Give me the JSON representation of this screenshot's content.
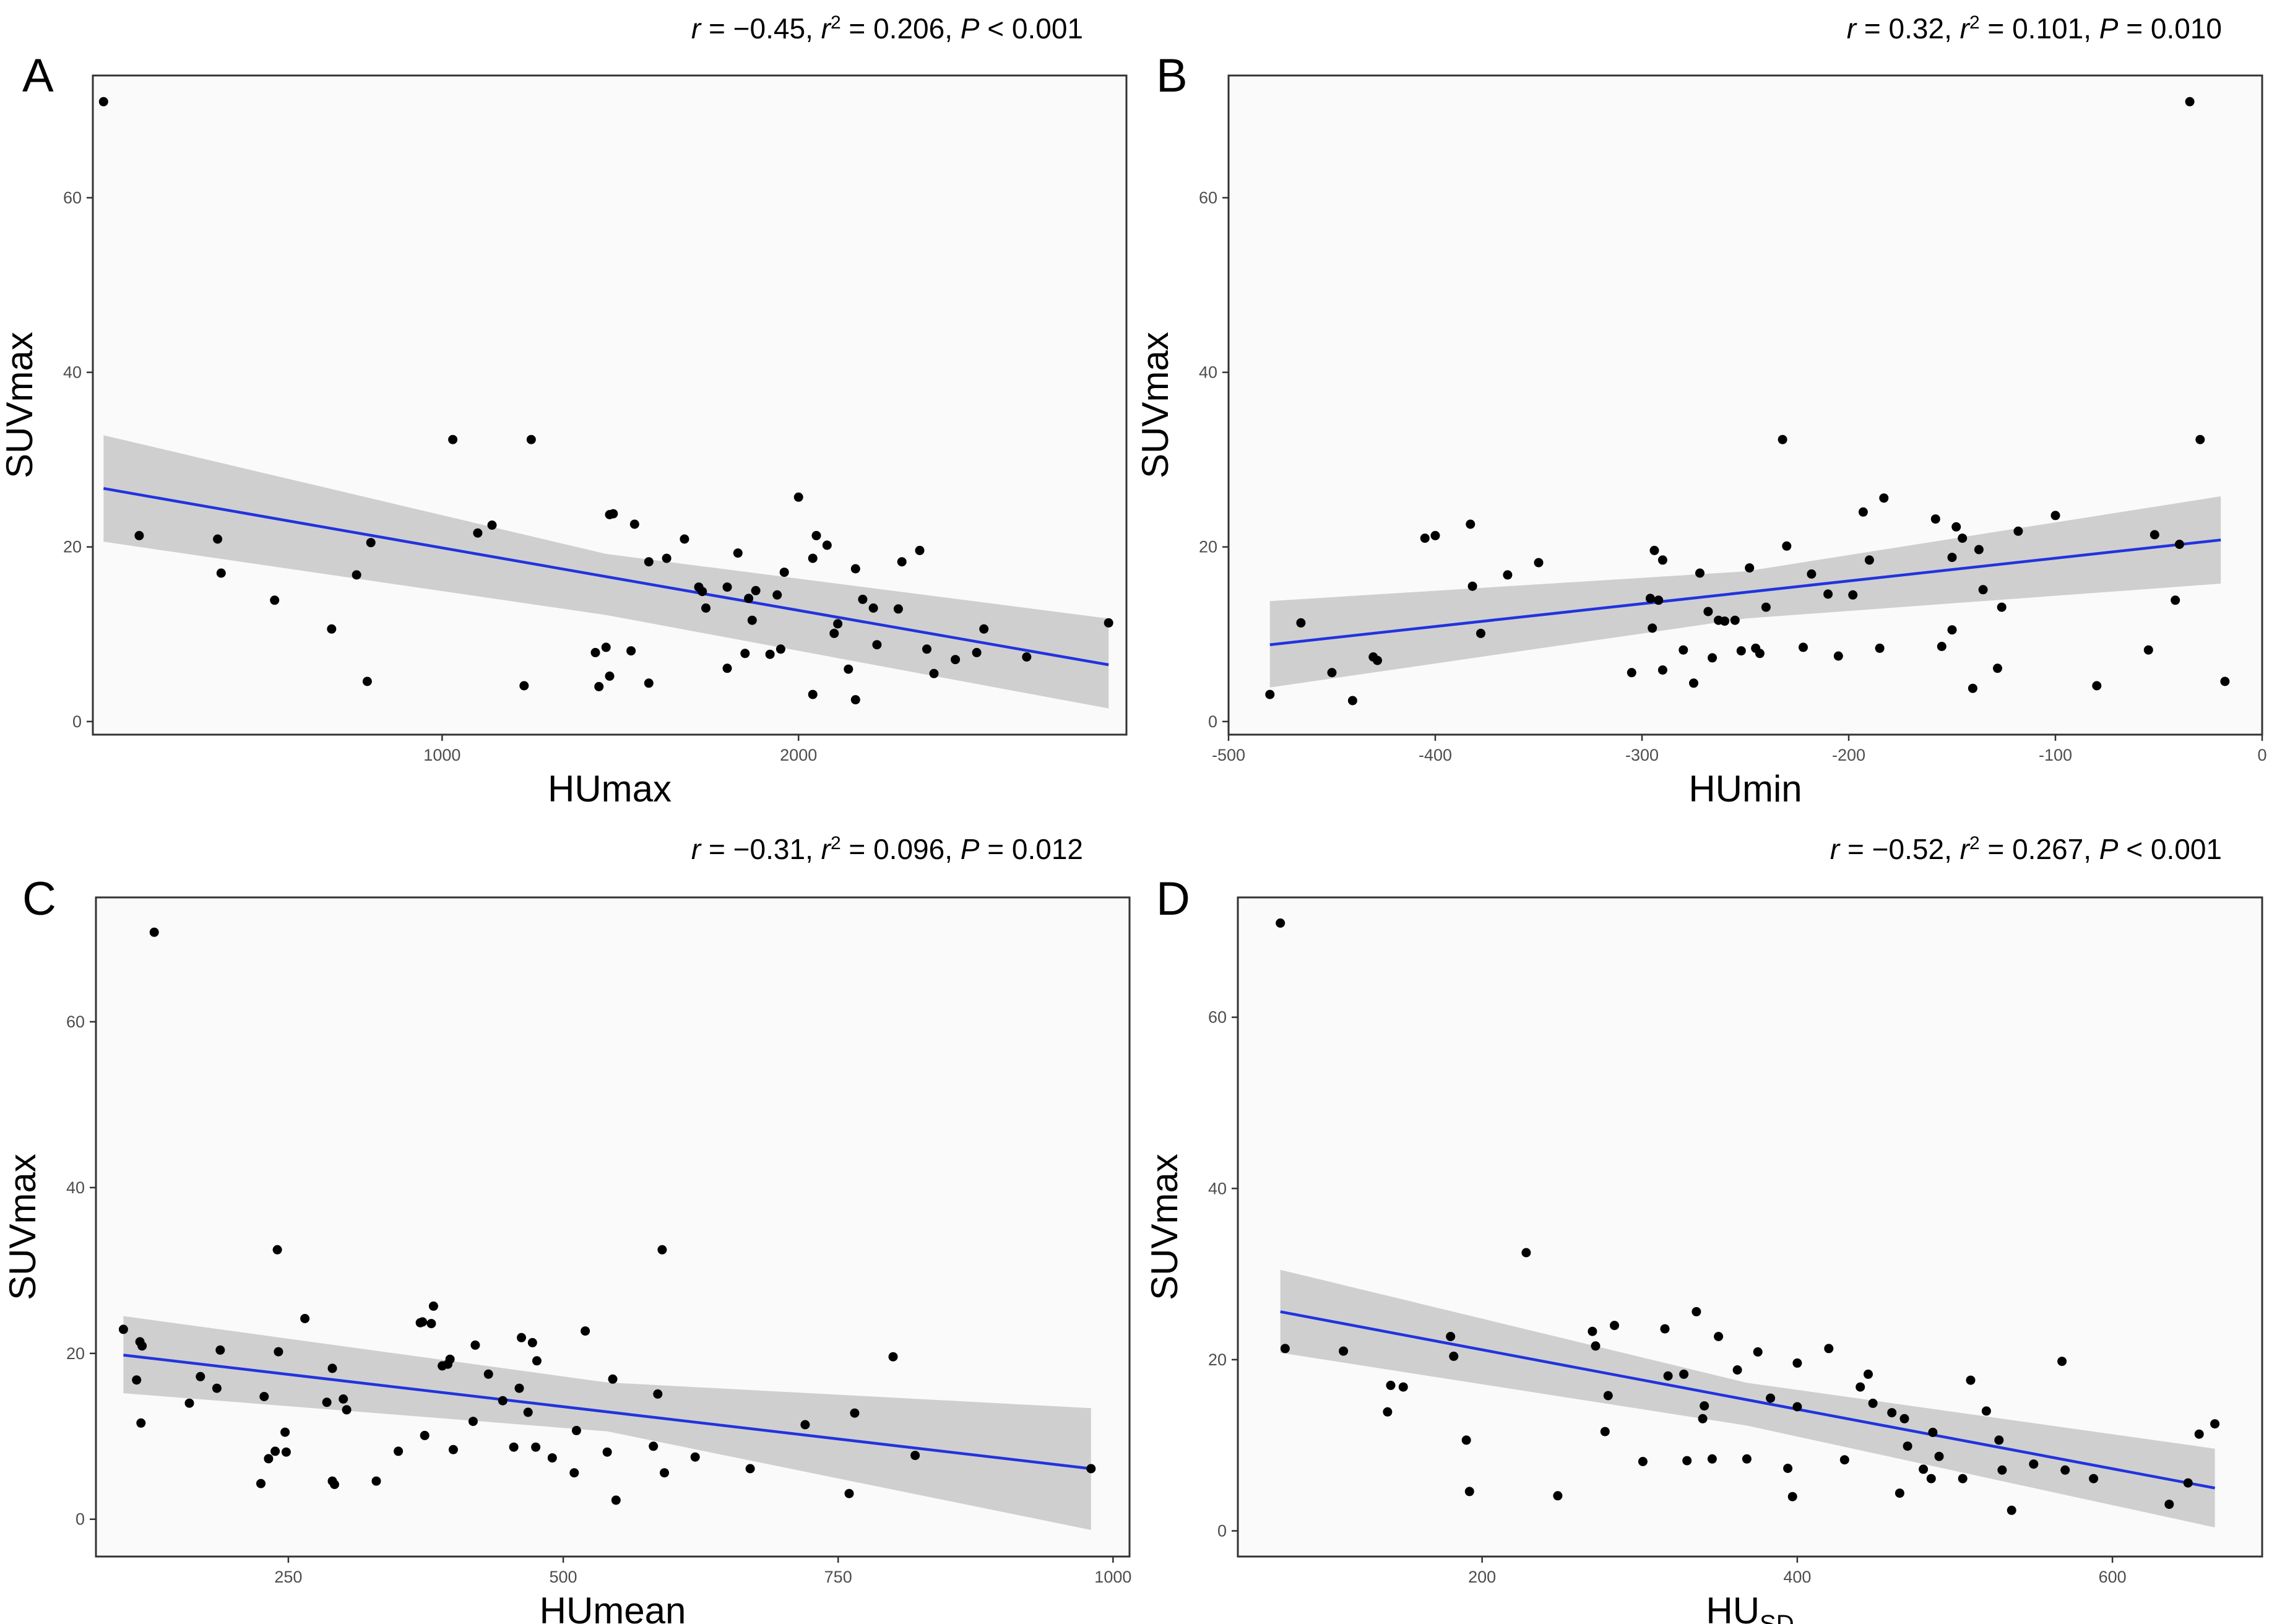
{
  "colors": {
    "fit_line": "#2233dd",
    "ci_band": "#bebebe",
    "point": "#000000",
    "panel_background": "#fafafa"
  },
  "chart_data": [
    {
      "type": "scatter",
      "panel": "A",
      "stats": {
        "r": "−0.45",
        "r2": "0.206",
        "p": "< 0.001"
      },
      "xlabel": "HUmax",
      "ylabel": "SUVmax",
      "xlim": [
        20,
        2920
      ],
      "ylim": [
        -1.5,
        74
      ],
      "xticks": [
        1000,
        2000
      ],
      "yticks": [
        0,
        20,
        40,
        60
      ],
      "fit": {
        "x": [
          50,
          2870
        ],
        "y": [
          26.7,
          6.5
        ]
      },
      "ci": {
        "upper": [
          32.8,
          19.2,
          11.8
        ],
        "lower": [
          20.6,
          12.2,
          1.5
        ],
        "x": [
          50,
          1460,
          2870
        ]
      },
      "points": [
        [
          50,
          71
        ],
        [
          150,
          21.3
        ],
        [
          370,
          20.9
        ],
        [
          380,
          17
        ],
        [
          530,
          13.9
        ],
        [
          690,
          10.6
        ],
        [
          760,
          16.8
        ],
        [
          790,
          4.6
        ],
        [
          800,
          20.5
        ],
        [
          1030,
          32.3
        ],
        [
          1100,
          21.6
        ],
        [
          1140,
          22.5
        ],
        [
          1230,
          4.1
        ],
        [
          1250,
          32.3
        ],
        [
          1430,
          7.9
        ],
        [
          1440,
          4
        ],
        [
          1460,
          8.5
        ],
        [
          1470,
          5.2
        ],
        [
          1470,
          23.7
        ],
        [
          1480,
          23.8
        ],
        [
          1530,
          8.1
        ],
        [
          1540,
          22.6
        ],
        [
          1580,
          18.3
        ],
        [
          1580,
          4.4
        ],
        [
          1630,
          18.7
        ],
        [
          1680,
          20.9
        ],
        [
          1720,
          15.4
        ],
        [
          1730,
          14.9
        ],
        [
          1740,
          13
        ],
        [
          1800,
          6.1
        ],
        [
          1800,
          15.4
        ],
        [
          1830,
          19.3
        ],
        [
          1850,
          7.8
        ],
        [
          1860,
          14.1
        ],
        [
          1870,
          11.6
        ],
        [
          1880,
          15
        ],
        [
          1920,
          7.7
        ],
        [
          1940,
          14.5
        ],
        [
          1950,
          8.3
        ],
        [
          1960,
          17.1
        ],
        [
          2000,
          25.7
        ],
        [
          2040,
          18.7
        ],
        [
          2040,
          3.1
        ],
        [
          2050,
          21.3
        ],
        [
          2080,
          20.2
        ],
        [
          2100,
          10.1
        ],
        [
          2110,
          11.2
        ],
        [
          2140,
          6
        ],
        [
          2160,
          2.5
        ],
        [
          2160,
          17.5
        ],
        [
          2180,
          14
        ],
        [
          2210,
          13
        ],
        [
          2220,
          8.8
        ],
        [
          2280,
          12.9
        ],
        [
          2290,
          18.3
        ],
        [
          2340,
          19.6
        ],
        [
          2360,
          8.3
        ],
        [
          2380,
          5.5
        ],
        [
          2440,
          7.1
        ],
        [
          2500,
          7.9
        ],
        [
          2520,
          10.6
        ],
        [
          2640,
          7.4
        ],
        [
          2870,
          11.3
        ]
      ]
    },
    {
      "type": "scatter",
      "panel": "B",
      "stats": {
        "r": "0.32",
        "r2": "0.101",
        "p": "= 0.010"
      },
      "xlabel": "HUmin",
      "ylabel": "SUVmax",
      "xlim": [
        -500,
        0
      ],
      "ylim": [
        -1.5,
        74
      ],
      "xticks": [
        -500,
        -400,
        -300,
        -200,
        -100,
        0
      ],
      "yticks": [
        0,
        20,
        40,
        60
      ],
      "fit": {
        "x": [
          -480,
          -20
        ],
        "y": [
          8.8,
          20.8
        ]
      },
      "ci": {
        "upper": [
          13.8,
          17.2,
          25.8
        ],
        "lower": [
          3.9,
          11.8,
          15.8
        ],
        "x": [
          -480,
          -250,
          -20
        ]
      },
      "points": [
        [
          -480,
          3.1
        ],
        [
          -465,
          11.3
        ],
        [
          -450,
          5.6
        ],
        [
          -440,
          2.4
        ],
        [
          -430,
          7.4
        ],
        [
          -428,
          7
        ],
        [
          -405,
          21
        ],
        [
          -400,
          21.3
        ],
        [
          -383,
          22.6
        ],
        [
          -382,
          15.5
        ],
        [
          -378,
          10.1
        ],
        [
          -365,
          16.8
        ],
        [
          -350,
          18.2
        ],
        [
          -305,
          5.6
        ],
        [
          -296,
          14.1
        ],
        [
          -295,
          10.7
        ],
        [
          -294,
          19.6
        ],
        [
          -292,
          13.9
        ],
        [
          -290,
          5.9
        ],
        [
          -290,
          18.5
        ],
        [
          -280,
          8.2
        ],
        [
          -275,
          4.4
        ],
        [
          -272,
          17
        ],
        [
          -268,
          12.6
        ],
        [
          -266,
          7.3
        ],
        [
          -263,
          11.6
        ],
        [
          -260,
          11.5
        ],
        [
          -255,
          11.6
        ],
        [
          -252,
          8.1
        ],
        [
          -248,
          17.6
        ],
        [
          -245,
          8.4
        ],
        [
          -243,
          7.8
        ],
        [
          -240,
          13.1
        ],
        [
          -232,
          32.3
        ],
        [
          -230,
          20.1
        ],
        [
          -222,
          8.5
        ],
        [
          -218,
          16.9
        ],
        [
          -210,
          14.6
        ],
        [
          -205,
          7.5
        ],
        [
          -198,
          14.5
        ],
        [
          -193,
          24
        ],
        [
          -190,
          18.5
        ],
        [
          -185,
          8.4
        ],
        [
          -183,
          25.6
        ],
        [
          -158,
          23.2
        ],
        [
          -155,
          8.6
        ],
        [
          -150,
          10.5
        ],
        [
          -150,
          18.8
        ],
        [
          -148,
          22.3
        ],
        [
          -145,
          21
        ],
        [
          -140,
          3.8
        ],
        [
          -137,
          19.7
        ],
        [
          -135,
          15.1
        ],
        [
          -128,
          6.1
        ],
        [
          -126,
          13.1
        ],
        [
          -118,
          21.8
        ],
        [
          -100,
          23.6
        ],
        [
          -80,
          4.1
        ],
        [
          -55,
          8.2
        ],
        [
          -52,
          21.4
        ],
        [
          -42,
          13.9
        ],
        [
          -40,
          20.3
        ],
        [
          -35,
          71
        ],
        [
          -30,
          32.3
        ],
        [
          -18,
          4.6
        ]
      ]
    },
    {
      "type": "scatter",
      "panel": "C",
      "stats": {
        "r": "−0.31",
        "r2": "0.096",
        "p": "= 0.012"
      },
      "xlabel": "HUmean",
      "ylabel": "SUVmax",
      "xlim": [
        75,
        1015
      ],
      "ylim": [
        -4.5,
        75
      ],
      "xticks": [
        250,
        500,
        750,
        1000
      ],
      "yticks": [
        0,
        20,
        40,
        60
      ],
      "fit": {
        "x": [
          100,
          980
        ],
        "y": [
          19.8,
          6.1
        ]
      },
      "ci": {
        "upper": [
          24.5,
          16.5,
          13.4
        ],
        "lower": [
          15.2,
          10.6,
          -1.3
        ],
        "x": [
          100,
          540,
          980
        ]
      },
      "points": [
        [
          100,
          22.9
        ],
        [
          112,
          16.8
        ],
        [
          115,
          21.4
        ],
        [
          116,
          11.6
        ],
        [
          117,
          20.9
        ],
        [
          128,
          70.8
        ],
        [
          160,
          14
        ],
        [
          170,
          17.2
        ],
        [
          185,
          15.8
        ],
        [
          188,
          20.4
        ],
        [
          225,
          4.3
        ],
        [
          228,
          14.8
        ],
        [
          232,
          7.3
        ],
        [
          238,
          8.2
        ],
        [
          240,
          32.5
        ],
        [
          241,
          20.2
        ],
        [
          247,
          10.5
        ],
        [
          248,
          8.1
        ],
        [
          265,
          24.2
        ],
        [
          285,
          14.1
        ],
        [
          290,
          18.2
        ],
        [
          290,
          4.6
        ],
        [
          292,
          4.2
        ],
        [
          300,
          14.5
        ],
        [
          303,
          13.2
        ],
        [
          330,
          4.6
        ],
        [
          350,
          8.2
        ],
        [
          370,
          23.7
        ],
        [
          372,
          23.8
        ],
        [
          374,
          10.1
        ],
        [
          380,
          23.6
        ],
        [
          382,
          25.7
        ],
        [
          390,
          18.5
        ],
        [
          395,
          18.7
        ],
        [
          397,
          19.3
        ],
        [
          400,
          8.4
        ],
        [
          418,
          11.8
        ],
        [
          420,
          21
        ],
        [
          432,
          17.5
        ],
        [
          445,
          14.3
        ],
        [
          455,
          8.7
        ],
        [
          460,
          15.8
        ],
        [
          462,
          21.9
        ],
        [
          468,
          12.9
        ],
        [
          472,
          21.3
        ],
        [
          475,
          8.7
        ],
        [
          476,
          19.1
        ],
        [
          490,
          7.4
        ],
        [
          510,
          5.6
        ],
        [
          512,
          10.7
        ],
        [
          520,
          22.7
        ],
        [
          540,
          8.1
        ],
        [
          545,
          16.9
        ],
        [
          548,
          2.3
        ],
        [
          582,
          8.8
        ],
        [
          586,
          15.1
        ],
        [
          590,
          32.5
        ],
        [
          592,
          5.6
        ],
        [
          620,
          7.5
        ],
        [
          670,
          6.1
        ],
        [
          720,
          11.4
        ],
        [
          760,
          3.1
        ],
        [
          765,
          12.8
        ],
        [
          800,
          19.6
        ],
        [
          820,
          7.7
        ],
        [
          980,
          6.1
        ]
      ]
    },
    {
      "type": "scatter",
      "panel": "D",
      "stats": {
        "r": "−0.52",
        "r2": "0.267",
        "p": "< 0.001"
      },
      "xlabel": "HU",
      "xlabel_subscript": "SD",
      "ylabel": "SUVmax",
      "xlim": [
        45,
        695
      ],
      "ylim": [
        -3,
        74
      ],
      "xticks": [
        200,
        400,
        600
      ],
      "yticks": [
        0,
        20,
        40,
        60
      ],
      "fit": {
        "x": [
          72,
          665
        ],
        "y": [
          25.6,
          5
        ]
      },
      "ci": {
        "upper": [
          30.5,
          17.3,
          9.6
        ],
        "lower": [
          20.8,
          12.3,
          0.4
        ],
        "x": [
          72,
          368,
          665
        ]
      },
      "points": [
        [
          72,
          71
        ],
        [
          75,
          21.3
        ],
        [
          112,
          21
        ],
        [
          140,
          13.9
        ],
        [
          142,
          17
        ],
        [
          150,
          16.8
        ],
        [
          180,
          22.7
        ],
        [
          182,
          20.4
        ],
        [
          190,
          10.6
        ],
        [
          192,
          4.6
        ],
        [
          228,
          32.5
        ],
        [
          248,
          4.1
        ],
        [
          270,
          23.3
        ],
        [
          272,
          21.6
        ],
        [
          278,
          11.6
        ],
        [
          280,
          15.8
        ],
        [
          284,
          24
        ],
        [
          302,
          8.1
        ],
        [
          316,
          23.6
        ],
        [
          318,
          18.1
        ],
        [
          328,
          18.3
        ],
        [
          330,
          8.2
        ],
        [
          336,
          25.6
        ],
        [
          340,
          13.1
        ],
        [
          341,
          14.6
        ],
        [
          346,
          8.4
        ],
        [
          350,
          22.7
        ],
        [
          362,
          18.8
        ],
        [
          368,
          8.4
        ],
        [
          375,
          20.9
        ],
        [
          383,
          15.5
        ],
        [
          394,
          7.3
        ],
        [
          397,
          4
        ],
        [
          400,
          14.5
        ],
        [
          400,
          19.6
        ],
        [
          420,
          21.3
        ],
        [
          430,
          8.3
        ],
        [
          440,
          16.8
        ],
        [
          445,
          18.3
        ],
        [
          448,
          14.9
        ],
        [
          460,
          13.8
        ],
        [
          465,
          4.4
        ],
        [
          468,
          13.1
        ],
        [
          470,
          9.9
        ],
        [
          480,
          7.2
        ],
        [
          485,
          6.1
        ],
        [
          486,
          11.5
        ],
        [
          490,
          8.7
        ],
        [
          505,
          6.1
        ],
        [
          510,
          17.6
        ],
        [
          520,
          14
        ],
        [
          528,
          10.6
        ],
        [
          530,
          7.1
        ],
        [
          536,
          2.4
        ],
        [
          550,
          7.8
        ],
        [
          568,
          19.8
        ],
        [
          570,
          7.1
        ],
        [
          588,
          6.1
        ],
        [
          636,
          3.1
        ],
        [
          648,
          5.6
        ],
        [
          655,
          11.3
        ],
        [
          665,
          12.5
        ]
      ]
    }
  ]
}
